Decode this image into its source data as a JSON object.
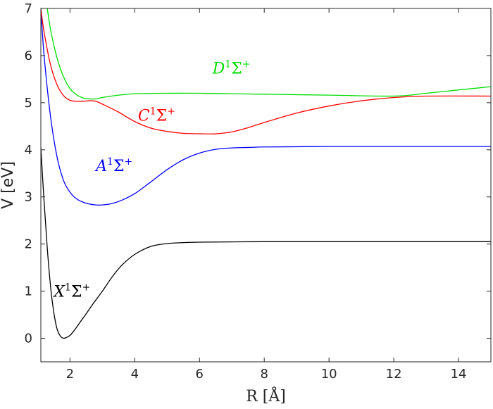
{
  "chart_data": {
    "type": "line",
    "xlabel": "R [Å]",
    "ylabel": "V [eV]",
    "xlim": [
      1.1,
      15
    ],
    "ylim": [
      -0.5,
      7
    ],
    "xticks": [
      2,
      4,
      6,
      8,
      10,
      12,
      14
    ],
    "yticks": [
      0,
      1,
      2,
      3,
      4,
      5,
      6,
      7
    ],
    "grid": false,
    "legend": "none",
    "series": [
      {
        "name": "X¹Σ⁺",
        "label": {
          "main": "X",
          "sup": "1",
          "sym": "Σ",
          "sup2": "+"
        },
        "color": "#000000",
        "x": [
          1.1,
          1.2,
          1.3,
          1.4,
          1.5,
          1.6,
          1.7,
          1.8,
          1.9,
          2.0,
          2.1,
          2.2,
          2.3,
          2.5,
          2.7,
          3.0,
          3.3,
          3.6,
          4.0,
          4.5,
          5.0,
          5.5,
          6.0,
          7.0,
          8.0,
          10.0,
          12.0,
          15.0
        ],
        "y": [
          4.05,
          2.9,
          1.9,
          1.1,
          0.55,
          0.2,
          0.05,
          0.0,
          0.02,
          0.06,
          0.14,
          0.23,
          0.33,
          0.52,
          0.72,
          1.0,
          1.3,
          1.55,
          1.78,
          1.95,
          2.01,
          2.03,
          2.04,
          2.045,
          2.05,
          2.05,
          2.05,
          2.05
        ]
      },
      {
        "name": "A¹Σ⁺",
        "label": {
          "main": "A",
          "sup": "1",
          "sym": "Σ",
          "sup2": "+"
        },
        "color": "#0000ff",
        "x": [
          1.1,
          1.2,
          1.4,
          1.6,
          1.8,
          2.0,
          2.2,
          2.4,
          2.6,
          2.8,
          3.0,
          3.3,
          3.6,
          4.0,
          4.5,
          5.0,
          5.5,
          6.0,
          6.5,
          7.0,
          7.5,
          8.0,
          9.0,
          10.0,
          12.0,
          15.0
        ],
        "y": [
          7.0,
          6.0,
          4.7,
          3.85,
          3.35,
          3.1,
          2.96,
          2.89,
          2.85,
          2.83,
          2.83,
          2.86,
          2.93,
          3.07,
          3.32,
          3.58,
          3.79,
          3.93,
          4.01,
          4.04,
          4.05,
          4.06,
          4.065,
          4.07,
          4.07,
          4.07
        ]
      },
      {
        "name": "C¹Σ⁺",
        "label": {
          "main": "C",
          "sup": "1",
          "sym": "Σ",
          "sup2": "+"
        },
        "color": "#ff0000",
        "x": [
          1.1,
          1.2,
          1.4,
          1.6,
          1.8,
          2.0,
          2.2,
          2.4,
          2.6,
          2.8,
          3.0,
          3.5,
          4.0,
          4.5,
          5.0,
          5.5,
          6.0,
          6.5,
          7.0,
          7.5,
          8.0,
          9.0,
          10.0,
          11.0,
          12.0,
          13.0,
          15.0
        ],
        "y": [
          7.0,
          6.5,
          5.8,
          5.38,
          5.15,
          5.05,
          5.03,
          5.03,
          5.04,
          5.03,
          4.97,
          4.8,
          4.6,
          4.46,
          4.39,
          4.35,
          4.34,
          4.34,
          4.38,
          4.47,
          4.58,
          4.78,
          4.93,
          5.04,
          5.11,
          5.14,
          5.14
        ]
      },
      {
        "name": "D¹Σ⁺",
        "label": {
          "main": "D",
          "sup": "1",
          "sym": "Σ",
          "sup2": "+"
        },
        "color": "#00dd00",
        "x": [
          1.3,
          1.4,
          1.6,
          1.8,
          2.0,
          2.2,
          2.4,
          2.6,
          2.8,
          3.0,
          3.5,
          4.0,
          5.0,
          6.0,
          7.0,
          8.0,
          10.0,
          12.0,
          13.0,
          14.0,
          15.0
        ],
        "y": [
          7.0,
          6.55,
          5.95,
          5.55,
          5.3,
          5.17,
          5.1,
          5.08,
          5.08,
          5.11,
          5.16,
          5.19,
          5.2,
          5.2,
          5.19,
          5.18,
          5.16,
          5.14,
          5.2,
          5.27,
          5.34
        ]
      }
    ],
    "annotations": [
      {
        "series": "D¹Σ⁺",
        "x": 6.4,
        "y": 5.62
      },
      {
        "series": "C¹Σ⁺",
        "x": 4.1,
        "y": 4.62
      },
      {
        "series": "A¹Σ⁺",
        "x": 2.8,
        "y": 3.55
      },
      {
        "series": "X¹Σ⁺",
        "x": 1.5,
        "y": 0.88
      }
    ]
  }
}
